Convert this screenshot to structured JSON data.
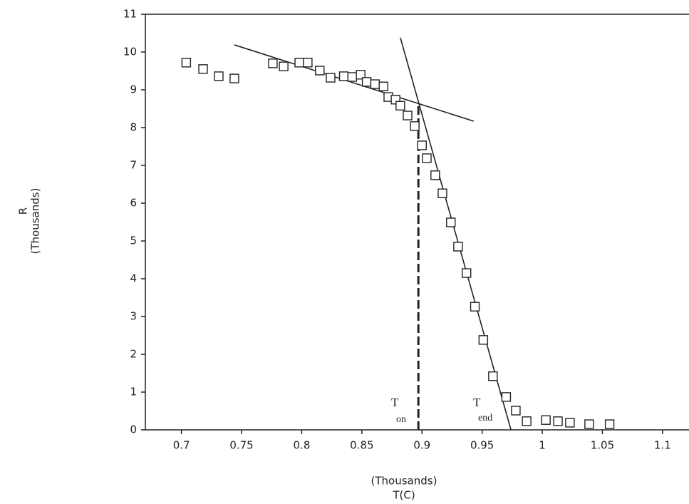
{
  "chart_data": {
    "type": "scatter",
    "x_label": "T(C)",
    "x_unit_label": "(Thousands)",
    "y_label": "R",
    "y_unit_label": "(Thousands)",
    "xlim": [
      0.67,
      1.122
    ],
    "ylim": [
      0,
      11
    ],
    "xticks": [
      0.7,
      0.75,
      0.8,
      0.85,
      0.9,
      0.95,
      1,
      1.05,
      1.1
    ],
    "yticks": [
      0,
      1,
      2,
      3,
      4,
      5,
      6,
      7,
      8,
      9,
      10,
      11
    ],
    "color": "#222222",
    "x": [
      0.704,
      0.718,
      0.731,
      0.744,
      0.776,
      0.785,
      0.798,
      0.805,
      0.815,
      0.824,
      0.835,
      0.842,
      0.849,
      0.854,
      0.861,
      0.868,
      0.872,
      0.878,
      0.882,
      0.888,
      0.894,
      0.9,
      0.904,
      0.911,
      0.917,
      0.924,
      0.93,
      0.937,
      0.944,
      0.951,
      0.959,
      0.97,
      0.978,
      0.987,
      1.003,
      1.013,
      1.023,
      1.039,
      1.056
    ],
    "values": [
      9.72,
      9.55,
      9.36,
      9.3,
      9.7,
      9.62,
      9.72,
      9.72,
      9.51,
      9.32,
      9.36,
      9.34,
      9.4,
      9.21,
      9.15,
      9.09,
      8.81,
      8.74,
      8.58,
      8.32,
      8.04,
      7.53,
      7.19,
      6.74,
      6.26,
      5.49,
      4.85,
      4.15,
      3.26,
      2.38,
      1.42,
      0.87,
      0.51,
      0.23,
      0.26,
      0.23,
      0.19,
      0.15,
      0.15
    ],
    "lines": [
      {
        "x": [
          0.744,
          0.943
        ],
        "values": [
          10.19,
          8.17
        ],
        "dashed": false
      },
      {
        "x": [
          0.882,
          0.974
        ],
        "values": [
          10.38,
          0
        ],
        "dashed": false
      },
      {
        "x": [
          0.897,
          0.897
        ],
        "values": [
          0,
          8.62
        ],
        "dashed": true
      }
    ],
    "annotations": [
      {
        "text": "T",
        "subscript": "on"
      },
      {
        "text": "T",
        "subscript": "end"
      }
    ]
  }
}
